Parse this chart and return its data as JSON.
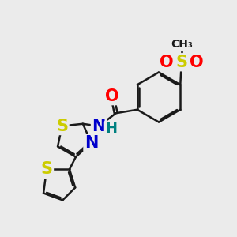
{
  "bg_color": "#ebebeb",
  "bond_color": "#1a1a1a",
  "bond_width": 1.8,
  "dbo": 0.055,
  "atom_colors": {
    "S": "#cccc00",
    "O": "#ff0000",
    "N": "#0000cc",
    "H": "#008080",
    "C": "#1a1a1a"
  },
  "fontsize": 14
}
